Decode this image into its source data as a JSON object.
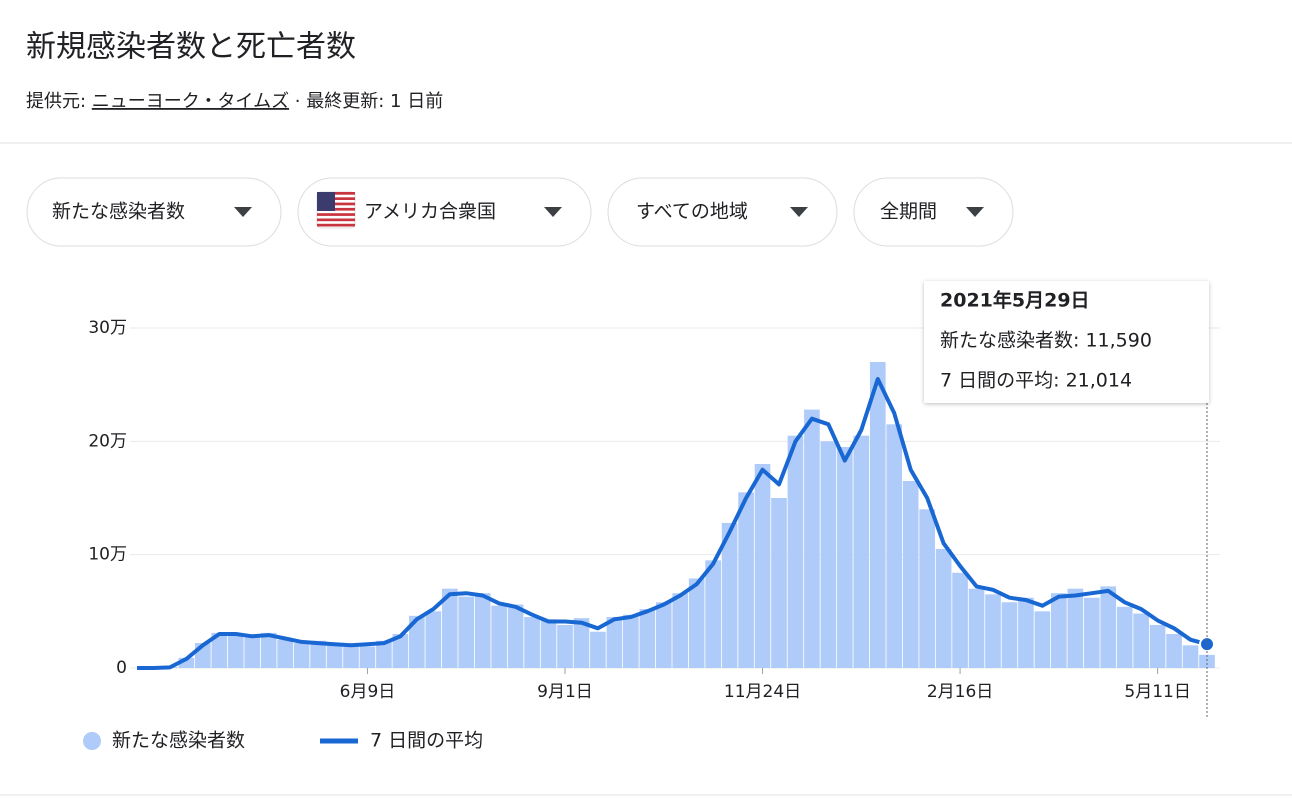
{
  "header": {
    "title": "新規感染者数と死亡者数",
    "source_label": "提供元: ",
    "source": "ニューヨーク・タイムズ",
    "updated": " · 最終更新: 1 日前"
  },
  "filters": [
    "新たな感染者数",
    "アメリカ合衆国",
    "すべての地域",
    "全期間"
  ],
  "tooltip": {
    "date": "2021年5月29日",
    "lines": [
      "新たな感染者数: 11,590",
      "7 日間の平均: 21,014"
    ]
  },
  "chart_data": {
    "type": "bar-line",
    "categories": [
      null,
      null,
      null,
      null,
      null,
      null,
      null,
      null,
      null,
      null,
      null,
      null,
      null,
      null,
      "6月9日",
      null,
      null,
      null,
      null,
      null,
      null,
      null,
      null,
      null,
      null,
      null,
      "9月1日",
      null,
      null,
      null,
      null,
      null,
      null,
      null,
      null,
      null,
      null,
      null,
      "11月24日",
      null,
      null,
      null,
      null,
      null,
      null,
      null,
      null,
      null,
      null,
      null,
      "2月16日",
      null,
      null,
      null,
      null,
      null,
      null,
      null,
      null,
      null,
      null,
      null,
      "5月11日",
      null,
      null,
      null
    ],
    "series": [
      {
        "name": "新たな感染者数",
        "color": "#aecbfa",
        "kind": "bar",
        "values": [
          0,
          0,
          800,
          9000,
          22000,
          31000,
          29000,
          27000,
          31000,
          25000,
          22000,
          24000,
          20000,
          21000,
          19000,
          24000,
          30000,
          46000,
          50000,
          70000,
          63000,
          66000,
          55000,
          56000,
          45000,
          43000,
          38000,
          44000,
          32000,
          45000,
          47000,
          52000,
          58000,
          66000,
          79000,
          95000,
          128000,
          155000,
          180000,
          150000,
          205000,
          228000,
          200000,
          195000,
          205000,
          270000,
          215000,
          165000,
          140000,
          105000,
          84000,
          70000,
          65000,
          58000,
          62000,
          50000,
          66000,
          70000,
          62000,
          72000,
          54000,
          48000,
          38000,
          30000,
          20000,
          11590
        ]
      },
      {
        "name": "7 日間の平均",
        "color": "#1967d2",
        "kind": "line",
        "values": [
          0,
          0,
          500,
          8000,
          20000,
          30000,
          30000,
          28000,
          29000,
          26000,
          23000,
          22000,
          21000,
          20000,
          21000,
          22000,
          28000,
          43000,
          52000,
          65000,
          66000,
          64000,
          57000,
          54000,
          47000,
          41000,
          41000,
          40000,
          35000,
          43000,
          45000,
          50000,
          56000,
          64000,
          74000,
          92000,
          120000,
          150000,
          175000,
          162000,
          200000,
          220000,
          215000,
          183000,
          210000,
          255000,
          225000,
          175000,
          150000,
          110000,
          90000,
          72000,
          69000,
          62000,
          60000,
          55000,
          63000,
          64000,
          66000,
          68000,
          58000,
          52000,
          42000,
          35000,
          25000,
          21014
        ]
      }
    ],
    "ylim": [
      0,
      300000
    ],
    "yticks": [
      0,
      {
        "value": 100000,
        "label": "10万"
      },
      {
        "value": 200000,
        "label": "20万"
      },
      {
        "value": 300000,
        "label": "30万"
      }
    ],
    "grid": true
  }
}
